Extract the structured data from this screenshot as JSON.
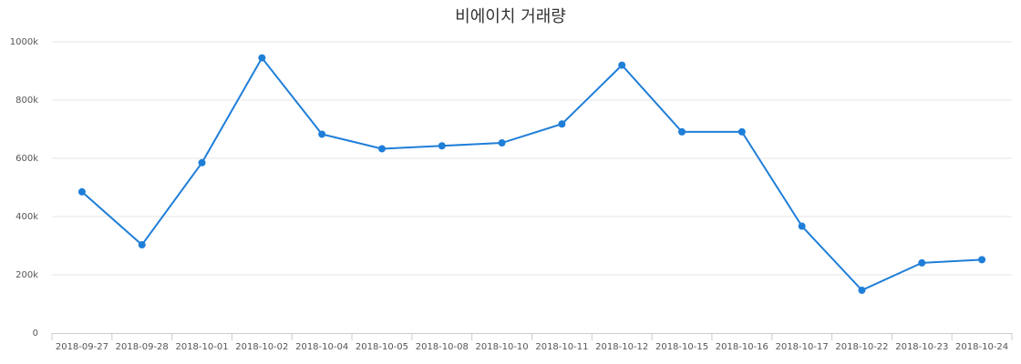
{
  "chart_data": {
    "type": "line",
    "title": "비에이치 거래량",
    "xlabel": "",
    "ylabel": "",
    "ylim": [
      0,
      1000000
    ],
    "yticks": [
      {
        "value": 0,
        "label": "0"
      },
      {
        "value": 200000,
        "label": "200k"
      },
      {
        "value": 400000,
        "label": "400k"
      },
      {
        "value": 600000,
        "label": "600k"
      },
      {
        "value": 800000,
        "label": "800k"
      },
      {
        "value": 1000000,
        "label": "1000k"
      }
    ],
    "categories": [
      "2018-09-27",
      "2018-09-28",
      "2018-10-01",
      "2018-10-02",
      "2018-10-04",
      "2018-10-05",
      "2018-10-08",
      "2018-10-10",
      "2018-10-11",
      "2018-10-12",
      "2018-10-15",
      "2018-10-16",
      "2018-10-17",
      "2018-10-22",
      "2018-10-23",
      "2018-10-24"
    ],
    "values": [
      485000,
      303000,
      585000,
      945000,
      683000,
      633000,
      643000,
      653000,
      718000,
      920000,
      691000,
      691000,
      367000,
      147000,
      241000,
      252000
    ],
    "grid": true,
    "legend": "none",
    "color": "#1f7ed8"
  }
}
